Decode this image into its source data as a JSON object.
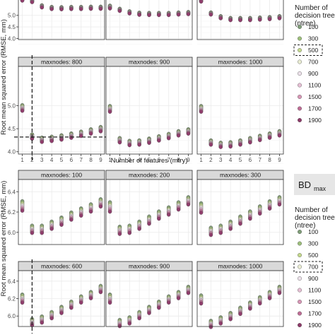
{
  "chart_data": [
    {
      "type": "scatter",
      "title": "",
      "xlabel": "Number of features (mtry)",
      "ylabel": "Root mean squared error (RMSE, mm)",
      "x_ticks": [
        "1",
        "2",
        "3",
        "4",
        "5",
        "6",
        "7",
        "8",
        "9"
      ],
      "y_ticks": [
        "4.0",
        "4.5",
        "5.0"
      ],
      "ylim": [
        3.95,
        5.85
      ],
      "xlim": [
        0.6,
        9.4
      ],
      "reference_lines": {
        "x": 2,
        "y": 4.32,
        "panel": "maxnodes: 800"
      },
      "panels": [
        {
          "label": "",
          "values": [
            5.7,
            5.62,
            5.39,
            5.32,
            5.31,
            5.32,
            5.32,
            5.33,
            5.33
          ]
        },
        {
          "label": "",
          "values": [
            5.36,
            5.24,
            5.13,
            5.07,
            5.06,
            5.06,
            5.06,
            5.08,
            5.1
          ]
        },
        {
          "label": "",
          "values": [
            5.66,
            5.08,
            4.92,
            4.84,
            4.84,
            4.84,
            4.86,
            4.88,
            4.92
          ]
        },
        {
          "label": "maxnodes: 800",
          "values": [
            4.95,
            4.33,
            4.26,
            4.28,
            4.31,
            4.35,
            4.39,
            4.44,
            4.49
          ]
        },
        {
          "label": "maxnodes: 900",
          "values": [
            4.93,
            4.25,
            4.19,
            4.2,
            4.24,
            4.29,
            4.34,
            4.4,
            4.44
          ]
        },
        {
          "label": "maxnodes: 1000",
          "values": [
            4.93,
            4.2,
            4.15,
            4.16,
            4.2,
            4.25,
            4.3,
            4.35,
            4.4
          ]
        }
      ]
    },
    {
      "type": "scatter",
      "title": "BDmax",
      "xlabel": "",
      "ylabel": "Root mean squared error (RMSE, mm)",
      "y_ticks": [
        "6.0",
        "6.2",
        "6.4"
      ],
      "ylim": [
        5.88,
        6.52
      ],
      "xlim": [
        0.6,
        9.4
      ],
      "reference_lines": {
        "x": 2,
        "panel": "maxnodes: 600"
      },
      "panels": [
        {
          "label": "maxnodes: 100",
          "values": [
            6.26,
            6.03,
            6.03,
            6.07,
            6.11,
            6.16,
            6.2,
            6.24,
            6.29
          ]
        },
        {
          "label": "maxnodes: 200",
          "values": [
            6.25,
            6.02,
            6.03,
            6.07,
            6.12,
            6.17,
            6.21,
            6.26,
            6.31
          ]
        },
        {
          "label": "maxnodes: 300",
          "values": [
            6.24,
            6.01,
            6.03,
            6.07,
            6.12,
            6.17,
            6.22,
            6.27,
            6.31
          ]
        },
        {
          "label": "maxnodes: 600",
          "values": [
            6.2,
            5.93,
            5.96,
            6.01,
            6.07,
            6.13,
            6.19,
            6.24,
            6.31
          ]
        },
        {
          "label": "maxnodes: 900",
          "values": [
            6.2,
            5.92,
            5.95,
            6.01,
            6.07,
            6.13,
            6.19,
            6.24,
            6.3
          ]
        },
        {
          "label": "maxnodes: 1000",
          "values": [
            6.19,
            5.91,
            5.95,
            6.0,
            6.06,
            6.12,
            6.18,
            6.24,
            6.3
          ]
        }
      ]
    }
  ],
  "legends": [
    {
      "title_line1": "Number of",
      "title_line2": "decision trees",
      "title_line3": "(ntree)",
      "items": [
        {
          "label": "100",
          "color": "#7f9e78"
        },
        {
          "label": "300",
          "color": "#9cbf7a"
        },
        {
          "label": "500",
          "color": "#c4d98c",
          "highlighted": true
        },
        {
          "label": "700",
          "color": "#e9ecd2"
        },
        {
          "label": "900",
          "color": "#ece1ea"
        },
        {
          "label": "1100",
          "color": "#e6bfd4"
        },
        {
          "label": "1500",
          "color": "#d897b6"
        },
        {
          "label": "1700",
          "color": "#bf6c95"
        },
        {
          "label": "1900",
          "color": "#8d3a69"
        }
      ]
    },
    {
      "badge": "BD",
      "badge_sub": "max",
      "title_line1": "Number of",
      "title_line2": "decision trees",
      "title_line3": "(ntree)",
      "items": [
        {
          "label": "100",
          "color": "#7f9e78"
        },
        {
          "label": "300",
          "color": "#9cbf7a"
        },
        {
          "label": "500",
          "color": "#c4d98c"
        },
        {
          "label": "700",
          "color": "#e9ecd2",
          "highlighted": true
        },
        {
          "label": "900",
          "color": "#ece1ea"
        },
        {
          "label": "1100",
          "color": "#e6bfd4"
        },
        {
          "label": "1500",
          "color": "#d897b6"
        },
        {
          "label": "1700",
          "color": "#bf6c95"
        },
        {
          "label": "1900",
          "color": "#8d3a69"
        }
      ]
    }
  ],
  "colors": {
    "panel_bg": "#ffffff",
    "grid": "#ebebeb",
    "strip_bg": "#d9d9d9",
    "border": "#333333",
    "point_outline": "#555555"
  }
}
